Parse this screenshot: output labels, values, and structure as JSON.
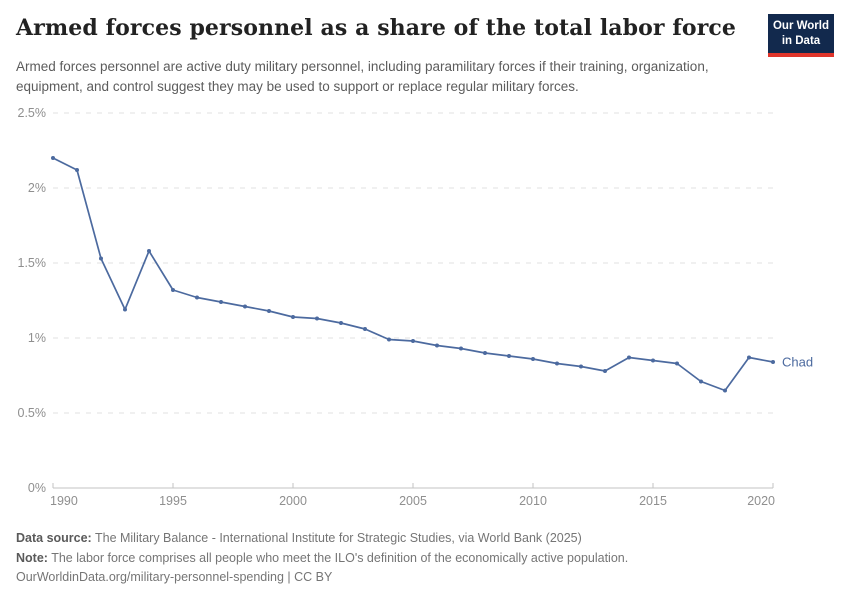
{
  "header": {
    "title": "Armed forces personnel as a share of the total labor force",
    "subtitle": "Armed forces personnel are active duty military personnel, including paramilitary forces if their training, organization, equipment, and control suggest they may be used to support or replace regular military forces."
  },
  "logo": {
    "line1": "Our World",
    "line2": "in Data",
    "background_color": "#12294d",
    "accent_color": "#e0352b"
  },
  "chart_data": {
    "type": "line",
    "title": "Armed forces personnel as a share of the total labor force",
    "xlabel": "",
    "ylabel": "",
    "xlim": [
      1990,
      2020
    ],
    "ylim": [
      0,
      2.5
    ],
    "grid": "horizontal dashed",
    "legend_position": "end-of-line label",
    "x_ticks": [
      1990,
      1995,
      2000,
      2005,
      2010,
      2015,
      2020
    ],
    "y_ticks": [
      {
        "value": 0,
        "label": "0%"
      },
      {
        "value": 0.5,
        "label": "0.5%"
      },
      {
        "value": 1,
        "label": "1%"
      },
      {
        "value": 1.5,
        "label": "1.5%"
      },
      {
        "value": 2,
        "label": "2%"
      },
      {
        "value": 2.5,
        "label": "2.5%"
      }
    ],
    "series": [
      {
        "name": "Chad",
        "color": "#4c6a9f",
        "unit": "%",
        "x": [
          1990,
          1991,
          1992,
          1993,
          1994,
          1995,
          1996,
          1997,
          1998,
          1999,
          2000,
          2001,
          2002,
          2003,
          2004,
          2005,
          2006,
          2007,
          2008,
          2009,
          2010,
          2011,
          2012,
          2013,
          2014,
          2015,
          2016,
          2017,
          2018,
          2019,
          2020
        ],
        "values": [
          2.2,
          2.12,
          1.53,
          1.19,
          1.58,
          1.32,
          1.27,
          1.24,
          1.21,
          1.18,
          1.14,
          1.13,
          1.1,
          1.06,
          0.99,
          0.98,
          0.95,
          0.93,
          0.9,
          0.88,
          0.86,
          0.83,
          0.81,
          0.78,
          0.87,
          0.85,
          0.83,
          0.71,
          0.65,
          0.87,
          0.84
        ]
      }
    ]
  },
  "footer": {
    "source_label": "Data source:",
    "source_text": " The Military Balance - International Institute for Strategic Studies, via World Bank (2025)",
    "note_label": "Note:",
    "note_text": " The labor force comprises all people who meet the ILO's definition of the economically active population.",
    "license_link": "OurWorldinData.org/military-personnel-spending",
    "license_sep": " | ",
    "license_cc": "CC BY"
  }
}
